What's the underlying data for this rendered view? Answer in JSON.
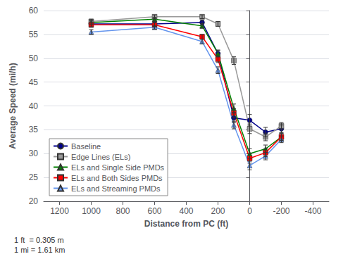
{
  "chart_data": {
    "type": "line",
    "xlabel": "Distance from PC (ft)",
    "ylabel": "Average Speed (mi/h)",
    "annotation": "1 ft  = 0.305 m\n1 mi = 1.61 km",
    "xlim": [
      1300,
      -500
    ],
    "ylim": [
      20,
      60
    ],
    "xticks": [
      1200,
      1000,
      800,
      600,
      400,
      200,
      0,
      -200,
      -400
    ],
    "yticks": [
      20,
      25,
      30,
      35,
      40,
      45,
      50,
      55,
      60
    ],
    "grid": true,
    "legend": "lower left",
    "series": [
      {
        "name": "Baseline",
        "color": "#00008B",
        "marker": "circle",
        "x": [
          1000,
          600,
          300,
          200,
          100,
          0,
          -100,
          -200
        ],
        "values": [
          57.2,
          57.2,
          57.5,
          51.0,
          37.5,
          37.0,
          34.5,
          35.2
        ],
        "yerr": [
          0.6,
          0.5,
          0.5,
          0.7,
          1.0,
          1.2,
          1.0,
          0.8
        ]
      },
      {
        "name": "Edge Lines (ELs)",
        "color": "#999999",
        "marker": "square",
        "x": [
          1000,
          600,
          300,
          200,
          100,
          0,
          -100,
          -200
        ],
        "values": [
          57.7,
          58.7,
          58.7,
          57.2,
          49.5,
          35.2,
          33.5,
          35.8
        ],
        "yerr": [
          0.5,
          0.4,
          0.4,
          0.5,
          0.8,
          1.0,
          0.8,
          0.7
        ]
      },
      {
        "name": "ELs and Single Side PMDs",
        "color": "#008000",
        "marker": "triangle",
        "x": [
          1000,
          600,
          300,
          200,
          100,
          0,
          -100,
          -200
        ],
        "values": [
          57.5,
          58.2,
          56.8,
          51.0,
          39.5,
          30.0,
          31.0,
          33.5
        ],
        "yerr": [
          0.5,
          0.4,
          0.5,
          0.7,
          0.9,
          1.0,
          0.8,
          0.7
        ]
      },
      {
        "name": "ELs and Both Sides PMDs",
        "color": "#FF0000",
        "marker": "square",
        "x": [
          1000,
          600,
          300,
          200,
          100,
          0,
          -100,
          -200
        ],
        "values": [
          57.0,
          57.0,
          54.5,
          49.8,
          38.5,
          29.0,
          30.2,
          33.5
        ],
        "yerr": [
          0.5,
          0.4,
          0.5,
          0.7,
          0.9,
          1.0,
          0.8,
          0.7
        ]
      },
      {
        "name": "ELs and Streaming PMDs",
        "color": "#6495ED",
        "marker": "triangle",
        "x": [
          1000,
          600,
          300,
          200,
          100,
          0,
          -100,
          -200
        ],
        "values": [
          55.5,
          56.5,
          53.5,
          47.5,
          36.0,
          27.5,
          29.5,
          33.0
        ],
        "yerr": [
          0.5,
          0.4,
          0.5,
          0.7,
          0.8,
          0.9,
          0.8,
          0.7
        ]
      }
    ]
  }
}
